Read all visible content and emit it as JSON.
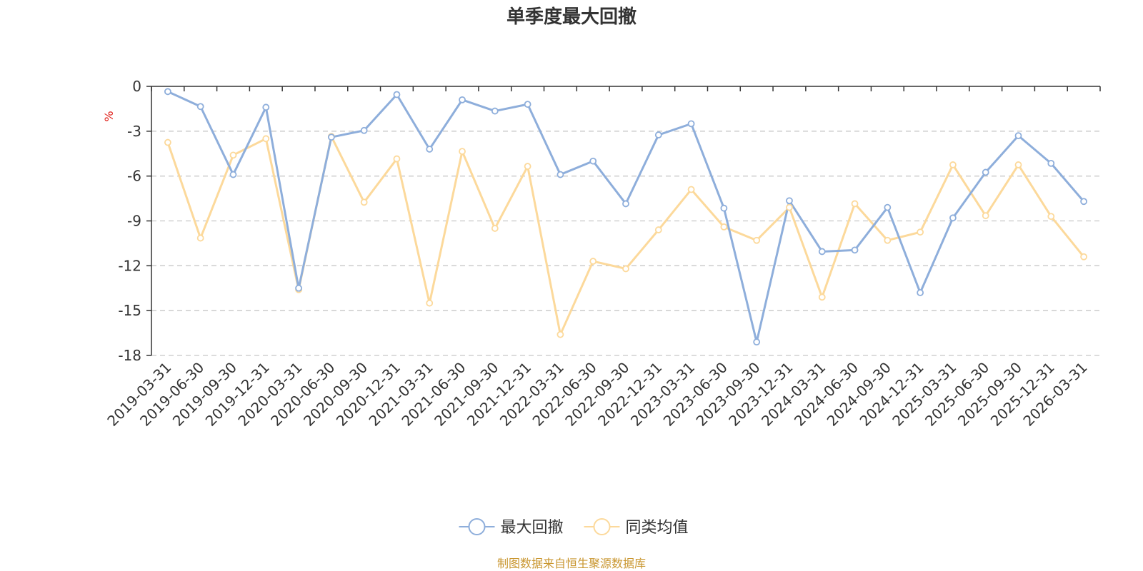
{
  "chart_data": {
    "type": "line",
    "title": "单季度最大回撤",
    "ylabel": "%",
    "ylim": [
      -18,
      0
    ],
    "yticks": [
      0,
      -3,
      -6,
      -9,
      -12,
      -15,
      -18
    ],
    "grid": true,
    "legend_position": "bottom-center",
    "categories": [
      "2019-03-31",
      "2019-06-30",
      "2019-09-30",
      "2019-12-31",
      "2020-03-31",
      "2020-06-30",
      "2020-09-30",
      "2020-12-31",
      "2021-03-31",
      "2021-06-30",
      "2021-09-30",
      "2021-12-31",
      "2022-03-31",
      "2022-06-30",
      "2022-09-30",
      "2022-12-31",
      "2023-03-31",
      "2023-06-30",
      "2023-09-30",
      "2023-12-31",
      "2024-03-31",
      "2024-06-30",
      "2024-09-30",
      "2024-12-31",
      "2025-03-31",
      "2025-06-30",
      "2025-09-30",
      "2025-12-31",
      "2026-03-31"
    ],
    "series": [
      {
        "name": "最大回撤",
        "color": "#8eaedb",
        "values": [
          -0.35,
          -1.35,
          -5.9,
          -1.4,
          -13.5,
          -3.4,
          -2.95,
          -0.55,
          -4.2,
          -0.9,
          -1.65,
          -1.2,
          -5.9,
          -5.0,
          -7.85,
          -3.25,
          -2.5,
          -8.15,
          -17.1,
          -7.65,
          -11.05,
          -10.95,
          -8.1,
          -13.8,
          -8.8,
          -5.75,
          -3.3,
          -5.15,
          -7.7
        ]
      },
      {
        "name": "同类均值",
        "color": "#fcd99b",
        "values": [
          -3.75,
          -10.15,
          -4.6,
          -3.5,
          -13.6,
          -3.35,
          -7.75,
          -4.85,
          -14.5,
          -4.35,
          -9.5,
          -5.35,
          -16.6,
          -11.7,
          -12.2,
          -9.6,
          -6.9,
          -9.4,
          -10.3,
          -8.1,
          -14.1,
          -7.85,
          -10.3,
          -9.75,
          -5.25,
          -8.65,
          -5.25,
          -8.7,
          -11.4
        ]
      }
    ],
    "axis_color": "#333333",
    "grid_color": "#c8c8c8",
    "unit_color": "#e0201a"
  },
  "footer": {
    "source": "制图数据来自恒生聚源数据库",
    "color": "#c9962f"
  }
}
